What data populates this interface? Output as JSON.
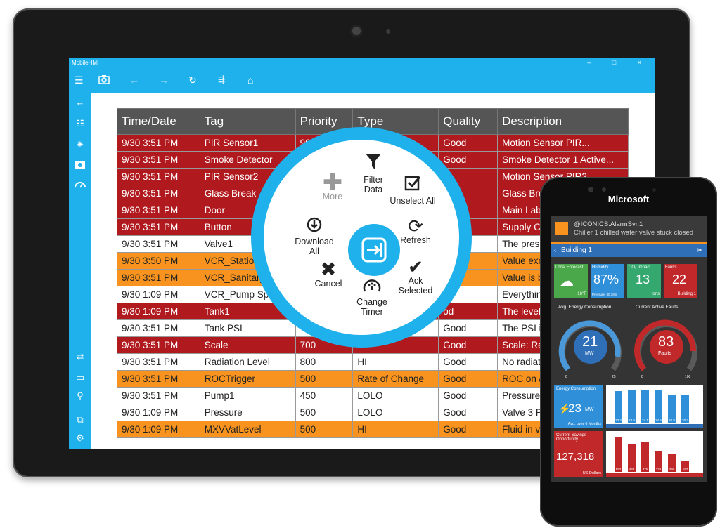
{
  "app": {
    "title": "MobileHMI",
    "window_controls": [
      "–",
      "□",
      "×"
    ]
  },
  "toolbar": {
    "icons": [
      "hamburger-icon",
      "camera-icon",
      "back-arrow-icon",
      "forward-arrow-icon",
      "refresh-icon",
      "filter-list-icon",
      "home-icon"
    ]
  },
  "sidebar": {
    "icons": [
      "back-icon",
      "list-icon",
      "sun-icon",
      "camera-icon",
      "gauge-icon",
      "sync-icon",
      "monitor-icon",
      "wrench-icon",
      "devices-icon",
      "gear-icon"
    ]
  },
  "table": {
    "headers": [
      "Time/Date",
      "Tag",
      "Priority",
      "Type",
      "Quality",
      "Description"
    ],
    "rows": [
      {
        "style": "red",
        "cells": [
          "9/30 3:51 PM",
          "PIR Sensor1",
          "900",
          "",
          "Good",
          "Motion Sensor PIR..."
        ]
      },
      {
        "style": "red",
        "cells": [
          "9/30 3:51 PM",
          "Smoke Detector",
          "",
          "",
          "Good",
          "Smoke Detector 1 Active..."
        ]
      },
      {
        "style": "red",
        "cells": [
          "9/30 3:51 PM",
          "PIR Sensor2",
          "",
          "",
          "d",
          "Motion Sensor PIR2..."
        ]
      },
      {
        "style": "red",
        "cells": [
          "9/30 3:51 PM",
          "Glass Break",
          "",
          "",
          "",
          "Glass Break"
        ]
      },
      {
        "style": "red",
        "cells": [
          "9/30 3:51 PM",
          "Door",
          "",
          "",
          "",
          "Main Lab D"
        ]
      },
      {
        "style": "red",
        "cells": [
          "9/30 3:51 PM",
          "Button",
          "",
          "",
          "",
          "Supply Case"
        ]
      },
      {
        "style": "white",
        "cells": [
          "9/30 3:51 PM",
          "Valve1",
          "",
          "",
          "",
          "The pressur"
        ]
      },
      {
        "style": "orange",
        "cells": [
          "9/30 3:50 PM",
          "VCR_Station",
          "",
          "",
          "",
          "Value excee"
        ]
      },
      {
        "style": "orange",
        "cells": [
          "9/30 3:51 PM",
          "VCR_Sanitary",
          "",
          "",
          "",
          "Value is bel"
        ]
      },
      {
        "style": "white",
        "cells": [
          "9/30 1:09 PM",
          "VCR_Pump Spee",
          "",
          "",
          "",
          "Everything"
        ]
      },
      {
        "style": "red",
        "cells": [
          "9/30 1:09 PM",
          "Tank1",
          "",
          "",
          "od",
          "The level in"
        ]
      },
      {
        "style": "white",
        "cells": [
          "9/30 3:51 PM",
          "Tank PSI",
          "",
          "",
          "Good",
          "The PSI in T"
        ]
      },
      {
        "style": "red",
        "cells": [
          "9/30 3:51 PM",
          "Scale",
          "700",
          "",
          "Good",
          "Scale: Read"
        ]
      },
      {
        "style": "white",
        "cells": [
          "9/30 3:51 PM",
          "Radiation Level",
          "800",
          "HI",
          "Good",
          "No radiatio"
        ]
      },
      {
        "style": "orange",
        "cells": [
          "9/30 3:51 PM",
          "ROCTrigger",
          "500",
          "Rate of Change",
          "Good",
          "ROC on Ana"
        ]
      },
      {
        "style": "white",
        "cells": [
          "9/30 3:51 PM",
          "Pump1",
          "450",
          "LOLO",
          "Good",
          "Pressure in"
        ]
      },
      {
        "style": "white",
        "cells": [
          "9/30 1:09 PM",
          "Pressure",
          "500",
          "LOLO",
          "Good",
          "Valve 3 Pres"
        ]
      },
      {
        "style": "orange",
        "cells": [
          "9/30 1:09 PM",
          "MXVVatLevel",
          "500",
          "HI",
          "Good",
          "Fluid in vat"
        ]
      }
    ]
  },
  "radial_menu": {
    "more": "More",
    "filter_data": [
      "Filter",
      "Data"
    ],
    "unselect_all": "Unselect All",
    "refresh": "Refresh",
    "ack_selected": [
      "Ack",
      "Selected"
    ],
    "change_timer": [
      "Change",
      "Timer"
    ],
    "cancel": "Cancel",
    "download_all": [
      "Download",
      "All"
    ]
  },
  "phone": {
    "brand": "Microsoft",
    "notification": {
      "sender": "@ICONICS.AlarmSvr.1",
      "message": "Chiller 1 chilled water valve stuck closed"
    },
    "breadcrumb": "Building 1",
    "tiles": [
      {
        "label": "Local Forecast",
        "value": "",
        "sub": "16°F",
        "color": "#4aa84a"
      },
      {
        "label": "Humidity",
        "value": "87%",
        "sub": "Pressure: 30.18in",
        "color": "#2f8fd8"
      },
      {
        "label": "CO₂ Impact",
        "value": "13",
        "sub": "tons",
        "color": "#35a870"
      },
      {
        "label": "Faults",
        "value": "22",
        "sub": "Building 1",
        "color": "#c0282a"
      }
    ],
    "gauges": {
      "energy_title": "Avg. Energy Consumption",
      "energy_value": "21",
      "energy_unit": "MW",
      "energy_min": "0",
      "energy_max": "25",
      "faults_title": "Current Active Faults",
      "faults_value": "83",
      "faults_unit": "Faults",
      "faults_min": "0",
      "faults_max": "100"
    },
    "energy_card": {
      "title": "Energy Consumption",
      "value": "23",
      "unit": "MW",
      "sub": "Avg. over 6 Months"
    },
    "savings_card": {
      "title": "Current Savings Opportunity",
      "value": "127,318",
      "sub": "US Dollars"
    },
    "energy_bars": [
      23.2,
      23.9,
      24.1,
      24.5,
      20.8,
      20.3
    ],
    "savings_bars": [
      552,
      435,
      475,
      328,
      290,
      162
    ],
    "month_labels": [
      "Month",
      "4",
      "5",
      "6",
      "7",
      "8",
      "9"
    ]
  }
}
